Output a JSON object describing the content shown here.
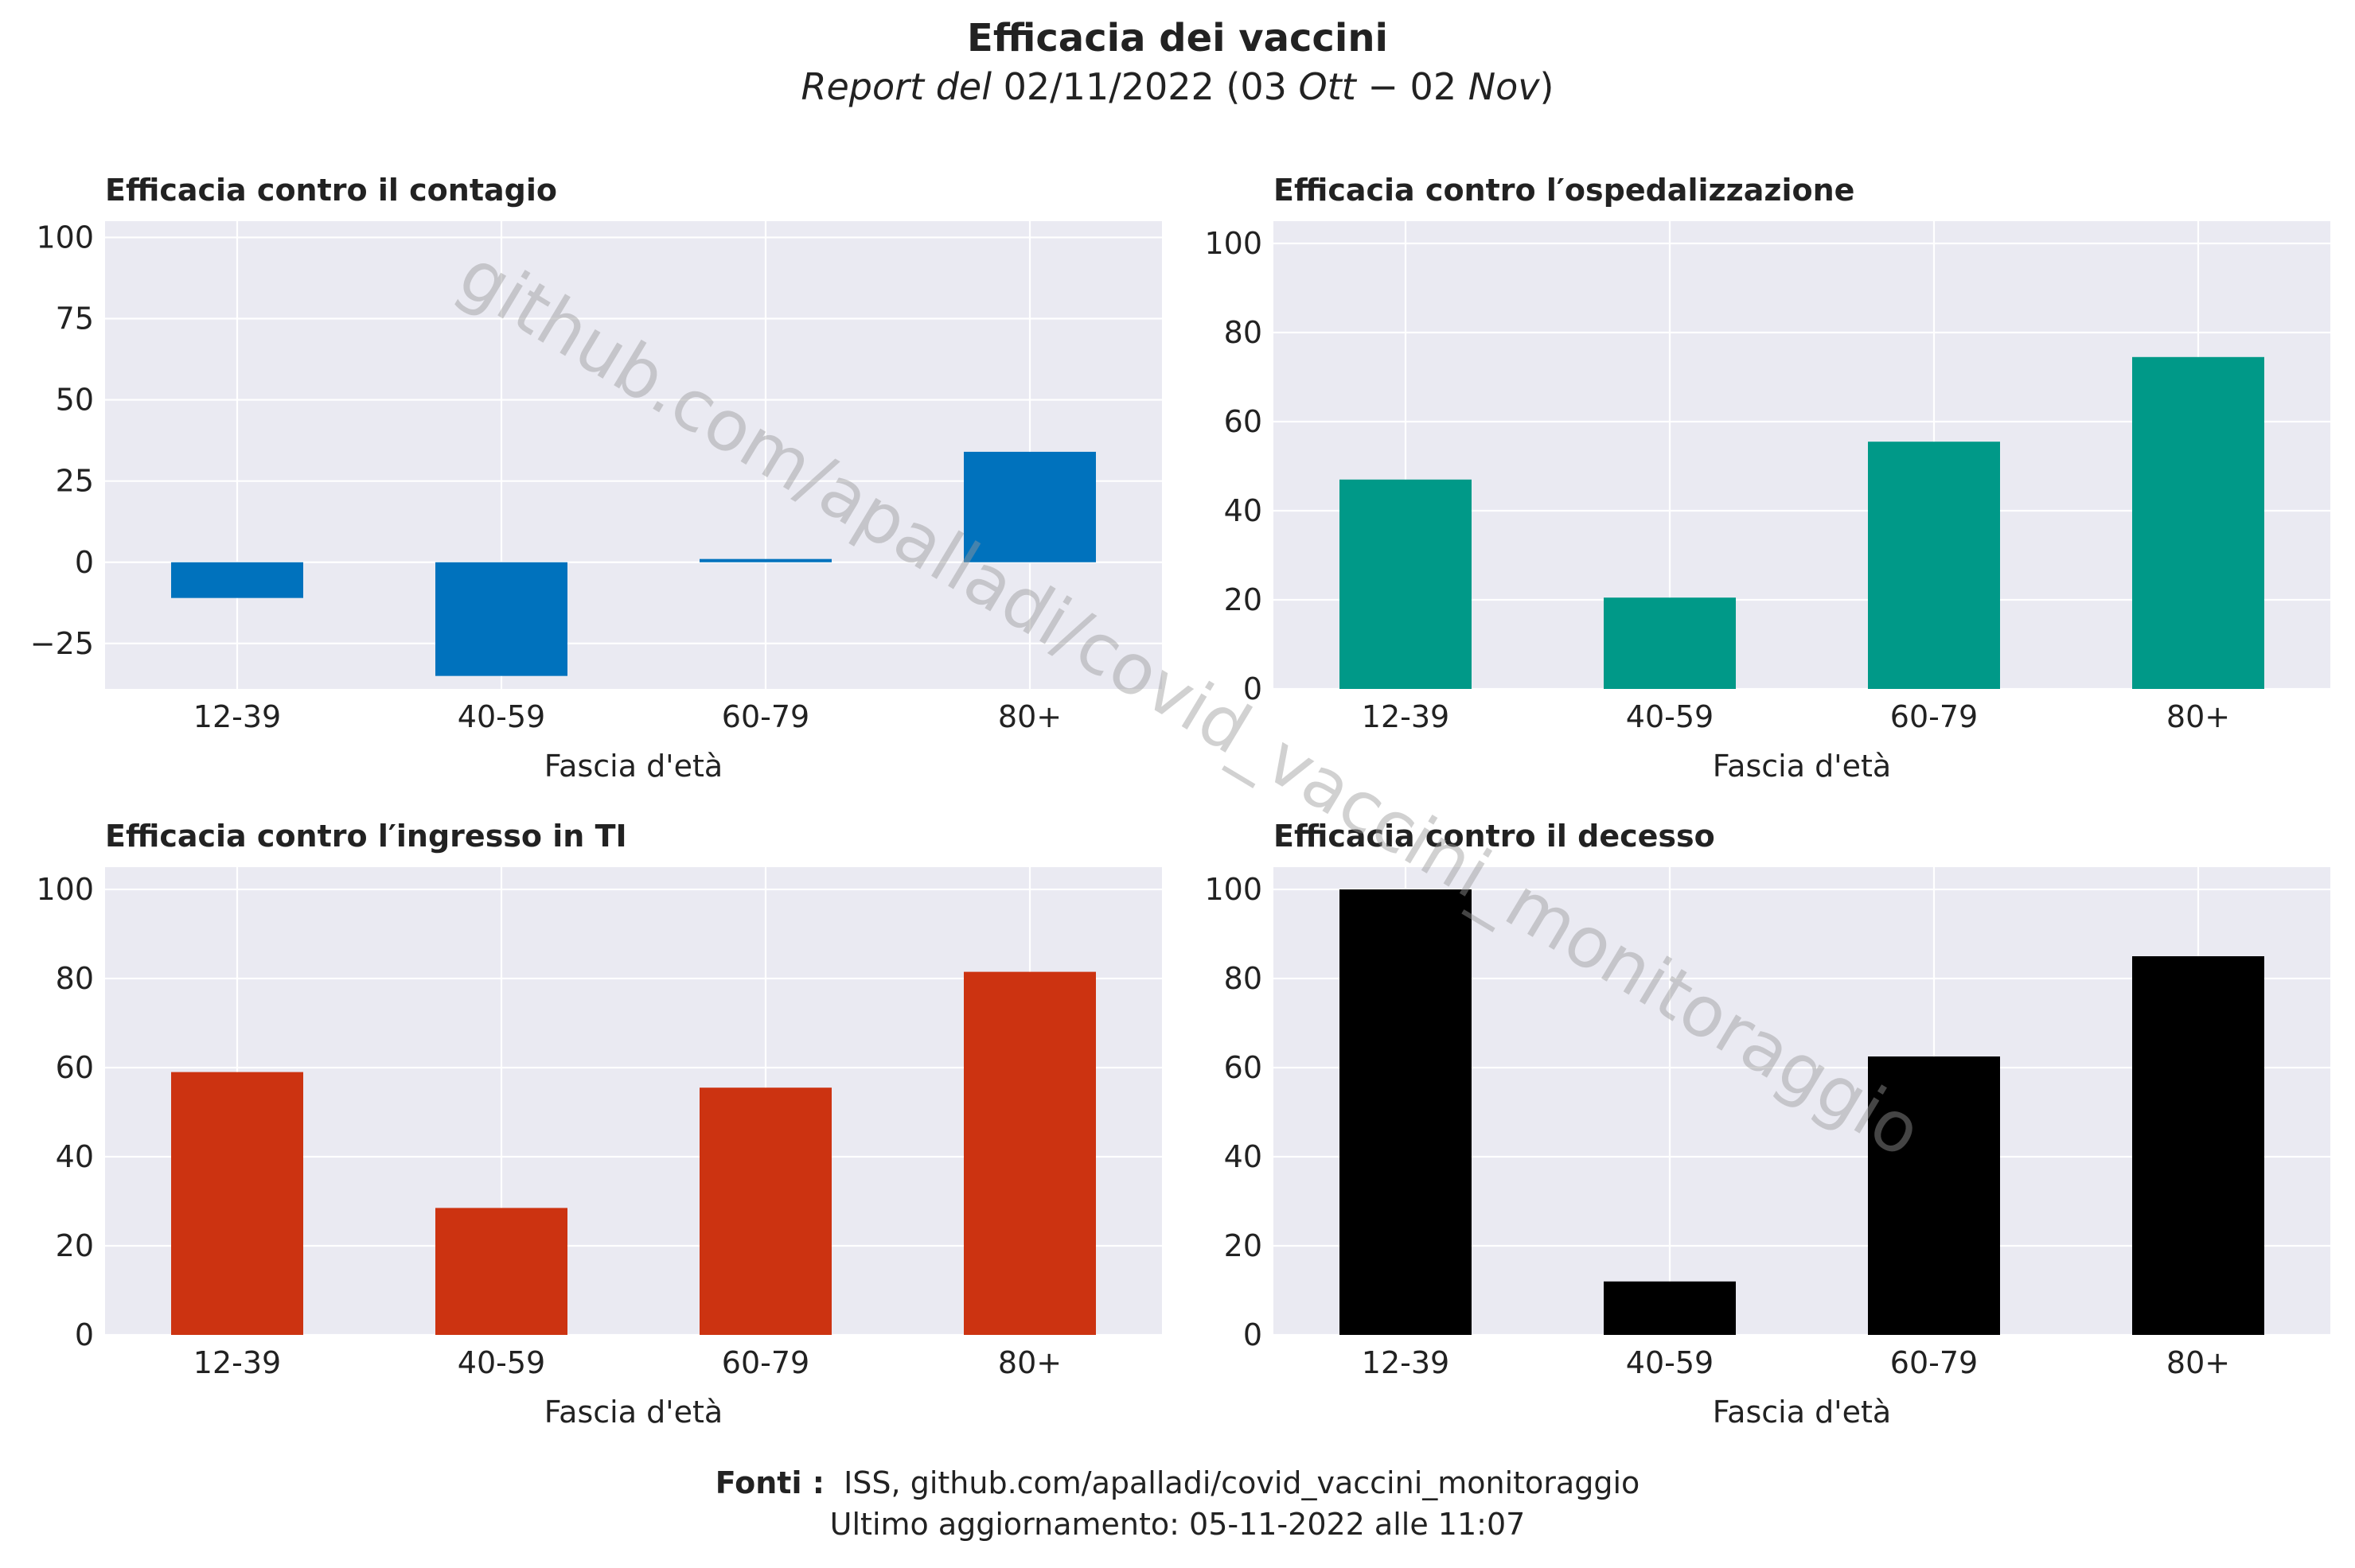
{
  "header": {
    "title": "Efficacia dei vaccini",
    "subtitle_italic_prefix": "Report del",
    "subtitle_date": "02/11/2022 (03",
    "subtitle_month1": "Ott",
    "subtitle_sep": " − 02 ",
    "subtitle_month2": "Nov",
    "subtitle_close": ")"
  },
  "watermark": "github.com/apalladi/covid_vaccini_monitoraggio",
  "footer": {
    "sources_label": "Fonti :",
    "sources": "ISS, github.com/apalladi/covid_vaccini_monitoraggio",
    "updated": "Ultimo aggiornamento: 05-11-2022 alle 11:07"
  },
  "chart_data": [
    {
      "type": "bar",
      "title": "Efficacia contro il contagio",
      "xlabel": "Fascia d'età",
      "ylabel": "",
      "categories": [
        "12-39",
        "40-59",
        "60-79",
        "80+"
      ],
      "values": [
        -11,
        -35,
        1,
        34
      ],
      "ylim": [
        -39,
        105
      ],
      "yticks": [
        -25,
        0,
        25,
        50,
        75,
        100
      ],
      "color": "#0072BD",
      "grid": true
    },
    {
      "type": "bar",
      "title": "Efficacia contro l′ospedalizzazione",
      "xlabel": "Fascia d'età",
      "ylabel": "",
      "categories": [
        "12-39",
        "40-59",
        "60-79",
        "80+"
      ],
      "values": [
        47,
        20.5,
        55.5,
        74.5
      ],
      "ylim": [
        0,
        105
      ],
      "yticks": [
        0,
        20,
        40,
        60,
        80,
        100
      ],
      "color": "#009988",
      "grid": true
    },
    {
      "type": "bar",
      "title": "Efficacia contro l′ingresso in TI",
      "xlabel": "Fascia d'età",
      "ylabel": "",
      "categories": [
        "12-39",
        "40-59",
        "60-79",
        "80+"
      ],
      "values": [
        59,
        28.5,
        55.5,
        81.5
      ],
      "ylim": [
        0,
        105
      ],
      "yticks": [
        0,
        20,
        40,
        60,
        80,
        100
      ],
      "color": "#CC3311",
      "grid": true
    },
    {
      "type": "bar",
      "title": "Efficacia contro il decesso",
      "xlabel": "Fascia d'età",
      "ylabel": "",
      "categories": [
        "12-39",
        "40-59",
        "60-79",
        "80+"
      ],
      "values": [
        100,
        12,
        62.5,
        85
      ],
      "ylim": [
        0,
        105
      ],
      "yticks": [
        0,
        20,
        40,
        60,
        80,
        100
      ],
      "color": "#000000",
      "grid": true
    }
  ]
}
